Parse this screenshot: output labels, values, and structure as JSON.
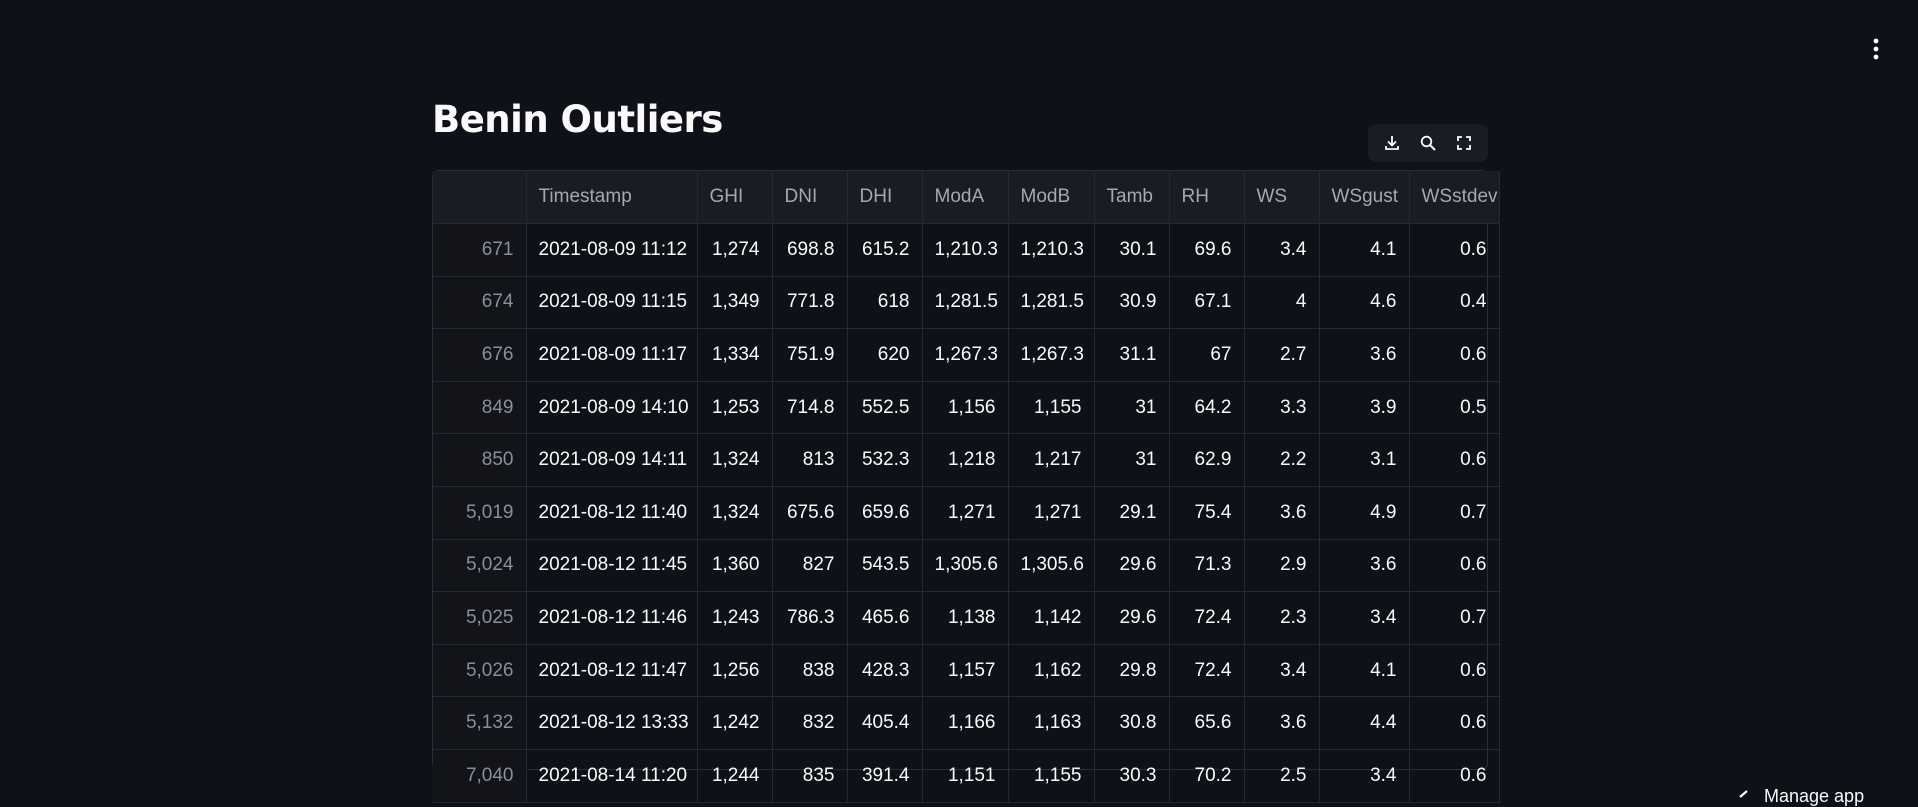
{
  "page": {
    "title": "Benin Outliers",
    "manage_label": "Manage app"
  },
  "toolbar": {
    "download": "download-icon",
    "search": "search-icon",
    "fullscreen": "fullscreen-icon"
  },
  "table": {
    "columns": [
      "",
      "Timestamp",
      "GHI",
      "DNI",
      "DHI",
      "ModA",
      "ModB",
      "Tamb",
      "RH",
      "WS",
      "WSgust",
      "WSstdev"
    ],
    "rows": [
      [
        "671",
        "2021-08-09 11:12",
        "1,274",
        "698.8",
        "615.2",
        "1,210.3",
        "1,210.3",
        "30.1",
        "69.6",
        "3.4",
        "4.1",
        "0.6"
      ],
      [
        "674",
        "2021-08-09 11:15",
        "1,349",
        "771.8",
        "618",
        "1,281.5",
        "1,281.5",
        "30.9",
        "67.1",
        "4",
        "4.6",
        "0.4"
      ],
      [
        "676",
        "2021-08-09 11:17",
        "1,334",
        "751.9",
        "620",
        "1,267.3",
        "1,267.3",
        "31.1",
        "67",
        "2.7",
        "3.6",
        "0.6"
      ],
      [
        "849",
        "2021-08-09 14:10",
        "1,253",
        "714.8",
        "552.5",
        "1,156",
        "1,155",
        "31",
        "64.2",
        "3.3",
        "3.9",
        "0.5"
      ],
      [
        "850",
        "2021-08-09 14:11",
        "1,324",
        "813",
        "532.3",
        "1,218",
        "1,217",
        "31",
        "62.9",
        "2.2",
        "3.1",
        "0.6"
      ],
      [
        "5,019",
        "2021-08-12 11:40",
        "1,324",
        "675.6",
        "659.6",
        "1,271",
        "1,271",
        "29.1",
        "75.4",
        "3.6",
        "4.9",
        "0.7"
      ],
      [
        "5,024",
        "2021-08-12 11:45",
        "1,360",
        "827",
        "543.5",
        "1,305.6",
        "1,305.6",
        "29.6",
        "71.3",
        "2.9",
        "3.6",
        "0.6"
      ],
      [
        "5,025",
        "2021-08-12 11:46",
        "1,243",
        "786.3",
        "465.6",
        "1,138",
        "1,142",
        "29.6",
        "72.4",
        "2.3",
        "3.4",
        "0.7"
      ],
      [
        "5,026",
        "2021-08-12 11:47",
        "1,256",
        "838",
        "428.3",
        "1,157",
        "1,162",
        "29.8",
        "72.4",
        "3.4",
        "4.1",
        "0.6"
      ],
      [
        "5,132",
        "2021-08-12 13:33",
        "1,242",
        "832",
        "405.4",
        "1,166",
        "1,163",
        "30.8",
        "65.6",
        "3.6",
        "4.4",
        "0.6"
      ],
      [
        "7,040",
        "2021-08-14 11:20",
        "1,244",
        "835",
        "391.4",
        "1,151",
        "1,155",
        "30.3",
        "70.2",
        "2.5",
        "3.4",
        "0.6"
      ]
    ]
  }
}
